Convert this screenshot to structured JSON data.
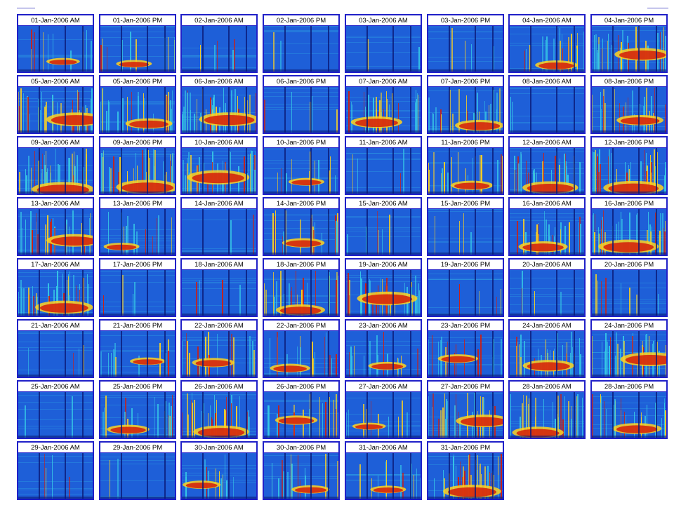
{
  "panels": [
    {
      "label": "01-Jan-2006 AM",
      "activity": 0.25
    },
    {
      "label": "01-Jan-2006 PM",
      "activity": 0.3
    },
    {
      "label": "02-Jan-2006 AM",
      "activity": 0.12
    },
    {
      "label": "02-Jan-2006 PM",
      "activity": 0.05
    },
    {
      "label": "03-Jan-2006 AM",
      "activity": 0.05
    },
    {
      "label": "03-Jan-2006 PM",
      "activity": 0.1
    },
    {
      "label": "04-Jan-2006 AM",
      "activity": 0.45
    },
    {
      "label": "04-Jan-2006 PM",
      "activity": 0.75
    },
    {
      "label": "05-Jan-2006 AM",
      "activity": 0.85
    },
    {
      "label": "05-Jan-2006 PM",
      "activity": 0.55
    },
    {
      "label": "06-Jan-2006 AM",
      "activity": 0.85
    },
    {
      "label": "06-Jan-2006 PM",
      "activity": 0.15
    },
    {
      "label": "07-Jan-2006 AM",
      "activity": 0.65
    },
    {
      "label": "07-Jan-2006 PM",
      "activity": 0.6
    },
    {
      "label": "08-Jan-2006 AM",
      "activity": 0.05
    },
    {
      "label": "08-Jan-2006 PM",
      "activity": 0.55
    },
    {
      "label": "09-Jan-2006 AM",
      "activity": 0.9
    },
    {
      "label": "09-Jan-2006 PM",
      "activity": 0.9
    },
    {
      "label": "10-Jan-2006 AM",
      "activity": 0.9
    },
    {
      "label": "10-Jan-2006 PM",
      "activity": 0.3
    },
    {
      "label": "11-Jan-2006 AM",
      "activity": 0.1
    },
    {
      "label": "11-Jan-2006 PM",
      "activity": 0.45
    },
    {
      "label": "12-Jan-2006 AM",
      "activity": 0.75
    },
    {
      "label": "12-Jan-2006 PM",
      "activity": 0.85
    },
    {
      "label": "13-Jan-2006 AM",
      "activity": 0.75
    },
    {
      "label": "13-Jan-2006 PM",
      "activity": 0.3
    },
    {
      "label": "14-Jan-2006 AM",
      "activity": 0.05
    },
    {
      "label": "14-Jan-2006 PM",
      "activity": 0.45
    },
    {
      "label": "15-Jan-2006 AM",
      "activity": 0.15
    },
    {
      "label": "15-Jan-2006 PM",
      "activity": 0.1
    },
    {
      "label": "16-Jan-2006 AM",
      "activity": 0.6
    },
    {
      "label": "16-Jan-2006 PM",
      "activity": 0.85
    },
    {
      "label": "17-Jan-2006 AM",
      "activity": 0.8
    },
    {
      "label": "17-Jan-2006 PM",
      "activity": 0.1
    },
    {
      "label": "18-Jan-2006 AM",
      "activity": 0.1
    },
    {
      "label": "18-Jan-2006 PM",
      "activity": 0.6
    },
    {
      "label": "19-Jan-2006 AM",
      "activity": 0.85
    },
    {
      "label": "19-Jan-2006 PM",
      "activity": 0.1
    },
    {
      "label": "20-Jan-2006 AM",
      "activity": 0.1
    },
    {
      "label": "20-Jan-2006 PM",
      "activity": 0.2
    },
    {
      "label": "21-Jan-2006 AM",
      "activity": 0.1
    },
    {
      "label": "21-Jan-2006 PM",
      "activity": 0.3
    },
    {
      "label": "22-Jan-2006 AM",
      "activity": 0.45
    },
    {
      "label": "22-Jan-2006 PM",
      "activity": 0.4
    },
    {
      "label": "23-Jan-2006 AM",
      "activity": 0.35
    },
    {
      "label": "23-Jan-2006 PM",
      "activity": 0.4
    },
    {
      "label": "24-Jan-2006 AM",
      "activity": 0.65
    },
    {
      "label": "24-Jan-2006 PM",
      "activity": 0.85
    },
    {
      "label": "25-Jan-2006 AM",
      "activity": 0.05
    },
    {
      "label": "25-Jan-2006 PM",
      "activity": 0.45
    },
    {
      "label": "26-Jan-2006 AM",
      "activity": 0.75
    },
    {
      "label": "26-Jan-2006 PM",
      "activity": 0.45
    },
    {
      "label": "27-Jan-2006 AM",
      "activity": 0.25
    },
    {
      "label": "27-Jan-2006 PM",
      "activity": 0.75
    },
    {
      "label": "28-Jan-2006 AM",
      "activity": 0.65
    },
    {
      "label": "28-Jan-2006 PM",
      "activity": 0.6
    },
    {
      "label": "29-Jan-2006 AM",
      "activity": 0.1
    },
    {
      "label": "29-Jan-2006 PM",
      "activity": 0.05
    },
    {
      "label": "30-Jan-2006 AM",
      "activity": 0.35
    },
    {
      "label": "30-Jan-2006 PM",
      "activity": 0.35
    },
    {
      "label": "31-Jan-2006 AM",
      "activity": 0.3
    },
    {
      "label": "31-Jan-2006 PM",
      "activity": 0.8
    }
  ],
  "colors": {
    "border": "#2020c8",
    "background": "#1e5fd8",
    "dark_line": "#0a1a78",
    "hot": "#d41c0a",
    "warm": "#ffd21e",
    "cool": "#36c8e6"
  }
}
